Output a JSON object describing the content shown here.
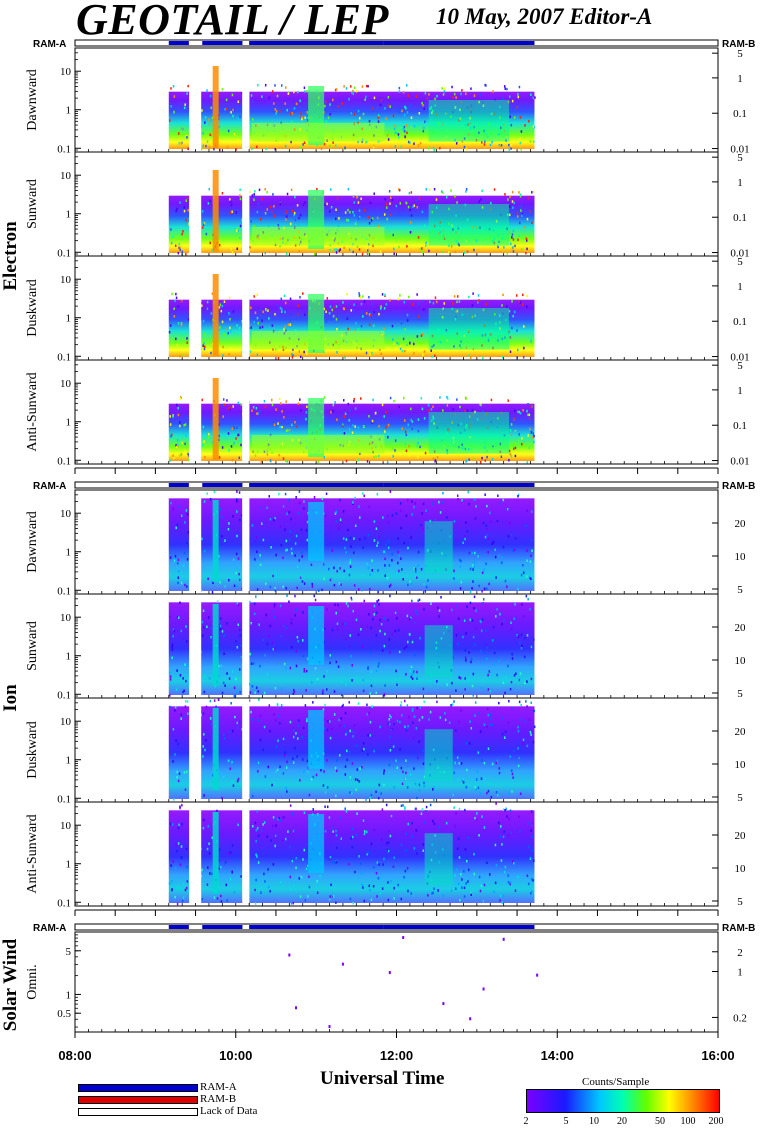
{
  "header": {
    "title": "GEOTAIL / LEP",
    "date_editor": "10 May, 2007   Editor-A"
  },
  "ram_labels": {
    "left": "RAM-A",
    "right": "RAM-B"
  },
  "groups": {
    "electron": "Electron",
    "ion": "Ion",
    "solar_wind": "Solar Wind"
  },
  "x_axis": {
    "title": "Universal Time",
    "ticks": [
      "08:00",
      "10:00",
      "12:00",
      "14:00",
      "16:00"
    ]
  },
  "legend": {
    "ram_a": "RAM-A",
    "ram_b": "RAM-B",
    "lack": "Lack of Data",
    "ram_a_color": "#0000cc",
    "ram_b_color": "#dd0000"
  },
  "colorbar": {
    "title": "Counts/Sample",
    "ticks": [
      "2",
      "5",
      "10",
      "20",
      "50",
      "100",
      "200"
    ]
  },
  "chart_data": [
    {
      "type": "heatmap",
      "group": "Electron",
      "title": "Dawnward",
      "xlabel": "",
      "ylabel": "Dawnward",
      "x_range": [
        "08:00",
        "16:00"
      ],
      "left_ticks": [
        "10",
        "1",
        "0.1"
      ],
      "right_ticks": [
        "5",
        "1",
        "0.1",
        "0.01"
      ],
      "activity_intervals": [
        [
          "09:10",
          "09:25"
        ],
        [
          "09:35",
          "10:05"
        ],
        [
          "10:10",
          "11:50"
        ],
        [
          "11:50",
          "13:43"
        ]
      ]
    },
    {
      "type": "heatmap",
      "group": "Electron",
      "title": "Sunward",
      "xlabel": "",
      "ylabel": "Sunward",
      "x_range": [
        "08:00",
        "16:00"
      ],
      "left_ticks": [
        "10",
        "1",
        "0.1"
      ],
      "right_ticks": [
        "5",
        "1",
        "0.1",
        "0.01"
      ],
      "activity_intervals": [
        [
          "09:10",
          "09:25"
        ],
        [
          "09:35",
          "10:05"
        ],
        [
          "10:10",
          "11:50"
        ],
        [
          "11:50",
          "13:43"
        ]
      ]
    },
    {
      "type": "heatmap",
      "group": "Electron",
      "title": "Duskward",
      "xlabel": "",
      "ylabel": "Duskward",
      "x_range": [
        "08:00",
        "16:00"
      ],
      "left_ticks": [
        "10",
        "1",
        "0.1"
      ],
      "right_ticks": [
        "5",
        "1",
        "0.1",
        "0.01"
      ],
      "activity_intervals": [
        [
          "09:10",
          "09:25"
        ],
        [
          "09:35",
          "10:05"
        ],
        [
          "10:10",
          "11:50"
        ],
        [
          "11:50",
          "13:43"
        ]
      ]
    },
    {
      "type": "heatmap",
      "group": "Electron",
      "title": "Anti-Sunward",
      "xlabel": "",
      "ylabel": "Anti-Sunward",
      "x_range": [
        "08:00",
        "16:00"
      ],
      "left_ticks": [
        "10",
        "1",
        "0.1"
      ],
      "right_ticks": [
        "5",
        "1",
        "0.1",
        "0.01"
      ],
      "activity_intervals": [
        [
          "09:10",
          "09:25"
        ],
        [
          "09:35",
          "10:05"
        ],
        [
          "10:10",
          "11:50"
        ],
        [
          "11:50",
          "13:43"
        ]
      ]
    },
    {
      "type": "heatmap",
      "group": "Ion",
      "title": "Dawnward",
      "xlabel": "",
      "ylabel": "Dawnward",
      "x_range": [
        "08:00",
        "16:00"
      ],
      "left_ticks": [
        "10",
        "1",
        "0.1"
      ],
      "right_ticks": [
        "20",
        "10",
        "5"
      ],
      "activity_intervals": [
        [
          "09:10",
          "09:25"
        ],
        [
          "09:35",
          "10:05"
        ],
        [
          "10:10",
          "11:50"
        ],
        [
          "11:50",
          "13:43"
        ]
      ]
    },
    {
      "type": "heatmap",
      "group": "Ion",
      "title": "Sunward",
      "xlabel": "",
      "ylabel": "Sunward",
      "x_range": [
        "08:00",
        "16:00"
      ],
      "left_ticks": [
        "10",
        "1",
        "0.1"
      ],
      "right_ticks": [
        "20",
        "10",
        "5"
      ],
      "activity_intervals": [
        [
          "09:10",
          "09:25"
        ],
        [
          "09:35",
          "10:05"
        ],
        [
          "10:10",
          "11:50"
        ],
        [
          "11:50",
          "13:43"
        ]
      ]
    },
    {
      "type": "heatmap",
      "group": "Ion",
      "title": "Duskward",
      "xlabel": "",
      "ylabel": "Duskward",
      "x_range": [
        "08:00",
        "16:00"
      ],
      "left_ticks": [
        "10",
        "1",
        "0.1"
      ],
      "right_ticks": [
        "20",
        "10",
        "5"
      ],
      "activity_intervals": [
        [
          "09:10",
          "09:25"
        ],
        [
          "09:35",
          "10:05"
        ],
        [
          "10:10",
          "11:50"
        ],
        [
          "11:50",
          "13:43"
        ]
      ]
    },
    {
      "type": "heatmap",
      "group": "Ion",
      "title": "Anti-Sunward",
      "xlabel": "",
      "ylabel": "Anti-Sunward",
      "x_range": [
        "08:00",
        "16:00"
      ],
      "left_ticks": [
        "10",
        "1",
        "0.1"
      ],
      "right_ticks": [
        "20",
        "10",
        "5"
      ],
      "activity_intervals": [
        [
          "09:10",
          "09:25"
        ],
        [
          "09:35",
          "10:05"
        ],
        [
          "10:10",
          "11:50"
        ],
        [
          "11:50",
          "13:43"
        ]
      ]
    },
    {
      "type": "scatter",
      "group": "Solar Wind",
      "title": "Omni.",
      "xlabel": "",
      "ylabel": "Omni.",
      "x_range": [
        "08:00",
        "16:00"
      ],
      "left_ticks": [
        "5",
        "1",
        "0.5"
      ],
      "right_ticks": [
        "2",
        "1",
        "0.2"
      ],
      "points": [
        [
          "10:40",
          "4.2"
        ],
        [
          "10:45",
          "0.6"
        ],
        [
          "11:10",
          "0.3"
        ],
        [
          "11:20",
          "3.0"
        ],
        [
          "11:55",
          "2.2"
        ],
        [
          "12:05",
          "8.0"
        ],
        [
          "12:35",
          "0.7"
        ],
        [
          "12:55",
          "0.4"
        ],
        [
          "13:05",
          "1.2"
        ],
        [
          "13:20",
          "7.5"
        ],
        [
          "13:45",
          "2.0"
        ]
      ]
    }
  ]
}
